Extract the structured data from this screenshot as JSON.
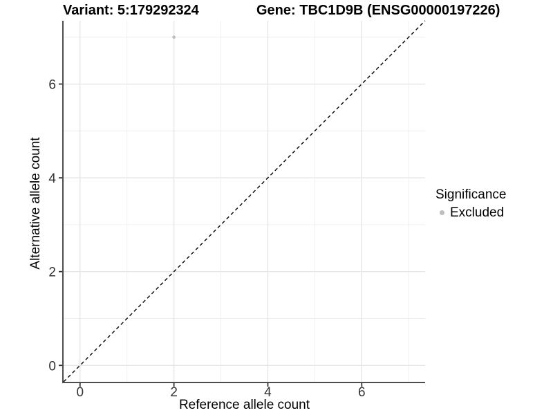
{
  "titles": {
    "left": "Variant: 5:179292324",
    "right": "Gene: TBC1D9B (ENSG00000197226)"
  },
  "legend": {
    "title": "Significance",
    "items": [
      {
        "label": "Excluded",
        "color": "#bebebe"
      }
    ]
  },
  "chart_data": {
    "type": "scatter",
    "title": "Variant: 5:179292324 | Gene: TBC1D9B (ENSG00000197226)",
    "xlabel": "Reference allele count",
    "ylabel": "Alternative allele count",
    "xlim": [
      -0.35,
      7.35
    ],
    "ylim": [
      -0.35,
      7.35
    ],
    "xticks": [
      0,
      2,
      4,
      6
    ],
    "yticks": [
      0,
      2,
      4,
      6
    ],
    "x_minor_ticks": [
      1,
      3,
      5,
      7
    ],
    "y_minor_ticks": [
      1,
      3,
      5,
      7
    ],
    "grid": "major+minor",
    "legend_position": "right",
    "series": [
      {
        "name": "Excluded",
        "color": "#bebebe",
        "points": [
          {
            "x": 2,
            "y": 7
          }
        ]
      }
    ],
    "reference_line": {
      "kind": "identity",
      "style": "dashed",
      "color": "#000000"
    },
    "colors": {
      "grid_major": "#e6e6e6",
      "grid_minor": "#f0f0f0",
      "axis_line": "#4d4d4d",
      "tick_mark": "#333333",
      "tick_label": "#333333"
    }
  }
}
